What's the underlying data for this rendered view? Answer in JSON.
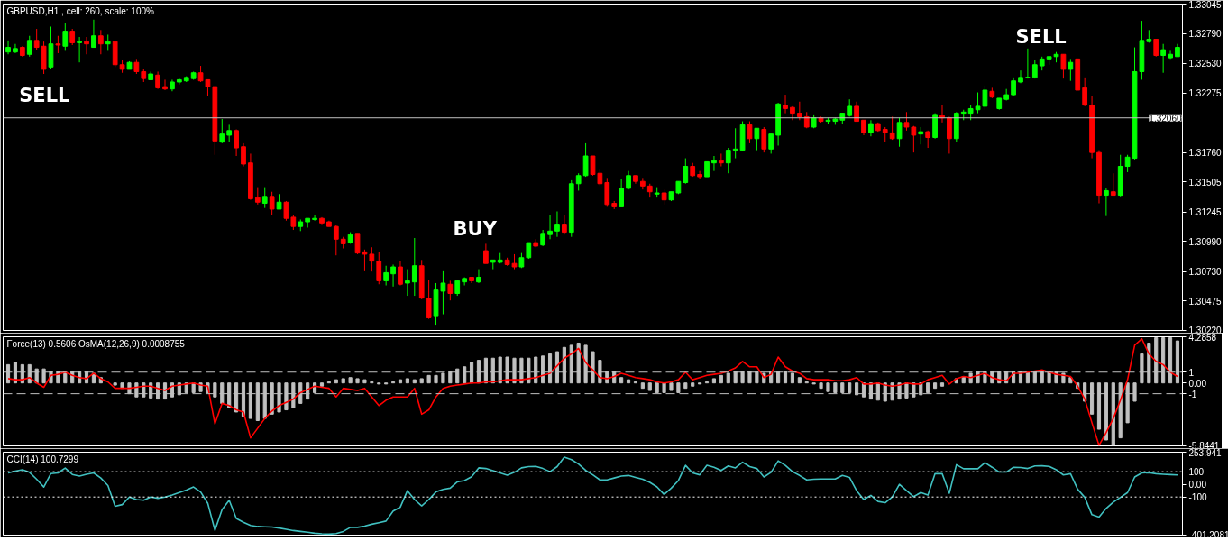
{
  "chart_data": [
    {
      "type": "candlestick",
      "title": "GBPUSD,H1 , cell: 260, scale: 100%",
      "categories": [
        null,
        null,
        null,
        null,
        null,
        null,
        null,
        null,
        null,
        null,
        null,
        null,
        null,
        null,
        null,
        null,
        null,
        null,
        null,
        null,
        null,
        null,
        null,
        null,
        null,
        null,
        null,
        null,
        null,
        null,
        null,
        null,
        null,
        null,
        null,
        null,
        null,
        null,
        null,
        null,
        null,
        null,
        null,
        null,
        null,
        null,
        null,
        null,
        null,
        null,
        null,
        null,
        null,
        null,
        null,
        null,
        null,
        null,
        null,
        null,
        null,
        null,
        null,
        null,
        null,
        null,
        null,
        null,
        null,
        null,
        null,
        null,
        null,
        null,
        null,
        null,
        null,
        null,
        null,
        null,
        null,
        null,
        null,
        null,
        null,
        null,
        null,
        null,
        null,
        null,
        null,
        null,
        null,
        null,
        null,
        null,
        null,
        null,
        null,
        null,
        null,
        null,
        null,
        null,
        null,
        null,
        null,
        null,
        null,
        null,
        null,
        null,
        null,
        null,
        null,
        null,
        null,
        null,
        null,
        null,
        null,
        null,
        null,
        null,
        null,
        null,
        null,
        null,
        null,
        null,
        null,
        null,
        null,
        null,
        null,
        null,
        null,
        null,
        null,
        null,
        null,
        null,
        null,
        null,
        null,
        null,
        null,
        null,
        null,
        null,
        null,
        null,
        null,
        null,
        null,
        null,
        null,
        null,
        null,
        null,
        null,
        null,
        null,
        null,
        null
      ],
      "ohlc": [
        [
          1.3263,
          1.3273,
          1.3261,
          1.3267
        ],
        [
          1.3263,
          1.327,
          1.3262,
          1.3266
        ],
        [
          1.3267,
          1.3268,
          1.3259,
          1.326
        ],
        [
          1.3261,
          1.3277,
          1.3259,
          1.3273
        ],
        [
          1.3273,
          1.3283,
          1.3265,
          1.3267
        ],
        [
          1.3268,
          1.3272,
          1.3244,
          1.3248
        ],
        [
          1.325,
          1.3285,
          1.3248,
          1.327
        ],
        [
          1.327,
          1.3277,
          1.3262,
          1.3269
        ],
        [
          1.3268,
          1.3288,
          1.3264,
          1.3281
        ],
        [
          1.3281,
          1.3283,
          1.3269,
          1.3271
        ],
        [
          1.3271,
          1.3276,
          1.3254,
          1.3272
        ],
        [
          1.3272,
          1.3276,
          1.3261,
          1.327
        ],
        [
          1.3267,
          1.3291,
          1.3267,
          1.3277
        ],
        [
          1.3277,
          1.3282,
          1.3261,
          1.327
        ],
        [
          1.327,
          1.3278,
          1.3264,
          1.3272
        ],
        [
          1.3272,
          1.3272,
          1.325,
          1.3252
        ],
        [
          1.3252,
          1.3256,
          1.3245,
          1.3248
        ],
        [
          1.3248,
          1.3255,
          1.3248,
          1.3254
        ],
        [
          1.3254,
          1.3257,
          1.3244,
          1.3246
        ],
        [
          1.3246,
          1.3248,
          1.3237,
          1.324
        ],
        [
          1.3239,
          1.3246,
          1.3239,
          1.3244
        ],
        [
          1.3243,
          1.3246,
          1.3231,
          1.3232
        ],
        [
          1.3233,
          1.3239,
          1.323,
          1.3231
        ],
        [
          1.3231,
          1.3239,
          1.3229,
          1.3237
        ],
        [
          1.3237,
          1.324,
          1.3235,
          1.3239
        ],
        [
          1.3238,
          1.3242,
          1.3237,
          1.3241
        ],
        [
          1.324,
          1.3246,
          1.3239,
          1.3245
        ],
        [
          1.3245,
          1.3251,
          1.3237,
          1.3238
        ],
        [
          1.3239,
          1.3239,
          1.3225,
          1.3233
        ],
        [
          1.3233,
          1.3233,
          1.3174,
          1.3186
        ],
        [
          1.3185,
          1.3205,
          1.3184,
          1.3192
        ],
        [
          1.3191,
          1.32,
          1.3185,
          1.3195
        ],
        [
          1.3195,
          1.3196,
          1.3173,
          1.318
        ],
        [
          1.3181,
          1.3184,
          1.3164,
          1.3166
        ],
        [
          1.3167,
          1.3175,
          1.3135,
          1.3136
        ],
        [
          1.3137,
          1.3146,
          1.3131,
          1.3133
        ],
        [
          1.3132,
          1.3146,
          1.3128,
          1.3138
        ],
        [
          1.3138,
          1.3142,
          1.3122,
          1.3127
        ],
        [
          1.3127,
          1.314,
          1.3127,
          1.3133
        ],
        [
          1.3133,
          1.3134,
          1.3117,
          1.3119
        ],
        [
          1.312,
          1.3122,
          1.3109,
          1.3112
        ],
        [
          1.3112,
          1.3118,
          1.3108,
          1.3116
        ],
        [
          1.3116,
          1.3119,
          1.3111,
          1.3119
        ],
        [
          1.3118,
          1.3122,
          1.3117,
          1.3119
        ],
        [
          1.3119,
          1.312,
          1.3114,
          1.3115
        ],
        [
          1.3116,
          1.3117,
          1.3112,
          1.3112
        ],
        [
          1.3112,
          1.3113,
          1.3087,
          1.3101
        ],
        [
          1.3101,
          1.3103,
          1.3093,
          1.3097
        ],
        [
          1.3098,
          1.3107,
          1.3097,
          1.3105
        ],
        [
          1.3106,
          1.3106,
          1.3088,
          1.3089
        ],
        [
          1.309,
          1.3092,
          1.3074,
          1.3088
        ],
        [
          1.3088,
          1.3094,
          1.3073,
          1.3082
        ],
        [
          1.3082,
          1.309,
          1.3062,
          1.3065
        ],
        [
          1.3065,
          1.3078,
          1.3061,
          1.3072
        ],
        [
          1.3071,
          1.3079,
          1.306,
          1.3077
        ],
        [
          1.3077,
          1.3082,
          1.3061,
          1.3062
        ],
        [
          1.3063,
          1.3075,
          1.3052,
          1.3065
        ],
        [
          1.3064,
          1.3102,
          1.3052,
          1.3078
        ],
        [
          1.3078,
          1.3083,
          1.3049,
          1.305
        ],
        [
          1.305,
          1.3066,
          1.3032,
          1.3033
        ],
        [
          1.3034,
          1.3063,
          1.3027,
          1.3057
        ],
        [
          1.3056,
          1.3074,
          1.3036,
          1.3063
        ],
        [
          1.3062,
          1.3065,
          1.3048,
          1.3054
        ],
        [
          1.3054,
          1.3065,
          1.3052,
          1.3065
        ],
        [
          1.3064,
          1.3068,
          1.3061,
          1.3067
        ],
        [
          1.3068,
          1.3068,
          1.3063,
          1.3065
        ],
        [
          1.3064,
          1.3075,
          1.3063,
          1.3068
        ],
        [
          1.3091,
          1.3097,
          1.308,
          1.308
        ],
        [
          1.3081,
          1.3083,
          1.3075,
          1.3083
        ],
        [
          1.3081,
          1.3089,
          1.308,
          1.3083
        ],
        [
          1.3083,
          1.3085,
          1.3078,
          1.3079
        ],
        [
          1.308,
          1.3088,
          1.3075,
          1.3077
        ],
        [
          1.3077,
          1.3089,
          1.3076,
          1.3085
        ],
        [
          1.3085,
          1.3098,
          1.3084,
          1.3098
        ],
        [
          1.3098,
          1.3101,
          1.3094,
          1.3095
        ],
        [
          1.3096,
          1.3109,
          1.3095,
          1.3106
        ],
        [
          1.3105,
          1.3122,
          1.3101,
          1.3108
        ],
        [
          1.3108,
          1.3125,
          1.3103,
          1.3114
        ],
        [
          1.3114,
          1.3122,
          1.3105,
          1.3107
        ],
        [
          1.3107,
          1.3152,
          1.3103,
          1.3149
        ],
        [
          1.3149,
          1.3158,
          1.3143,
          1.3156
        ],
        [
          1.3156,
          1.3184,
          1.3155,
          1.3173
        ],
        [
          1.3173,
          1.3173,
          1.3156,
          1.3157
        ],
        [
          1.3158,
          1.3162,
          1.3147,
          1.3149
        ],
        [
          1.315,
          1.3154,
          1.3129,
          1.3131
        ],
        [
          1.3132,
          1.3134,
          1.3127,
          1.3129
        ],
        [
          1.3129,
          1.3153,
          1.3129,
          1.3145
        ],
        [
          1.3145,
          1.316,
          1.3144,
          1.3156
        ],
        [
          1.3156,
          1.3156,
          1.3149,
          1.3151
        ],
        [
          1.3151,
          1.3154,
          1.3144,
          1.3147
        ],
        [
          1.3147,
          1.3149,
          1.3137,
          1.3142
        ],
        [
          1.314,
          1.3146,
          1.3137,
          1.3141
        ],
        [
          1.3141,
          1.3144,
          1.3131,
          1.3135
        ],
        [
          1.3135,
          1.3142,
          1.3134,
          1.3142
        ],
        [
          1.3141,
          1.3151,
          1.314,
          1.3151
        ],
        [
          1.315,
          1.3171,
          1.3149,
          1.3164
        ],
        [
          1.3164,
          1.3167,
          1.3155,
          1.3156
        ],
        [
          1.3157,
          1.316,
          1.3153,
          1.3155
        ],
        [
          1.3155,
          1.3168,
          1.3155,
          1.3168
        ],
        [
          1.3167,
          1.3173,
          1.316,
          1.3169
        ],
        [
          1.3169,
          1.3175,
          1.3164,
          1.3167
        ],
        [
          1.3167,
          1.318,
          1.3158,
          1.3178
        ],
        [
          1.3178,
          1.3197,
          1.3171,
          1.3179
        ],
        [
          1.3178,
          1.3203,
          1.3177,
          1.32
        ],
        [
          1.32,
          1.3203,
          1.3184,
          1.3188
        ],
        [
          1.3188,
          1.3197,
          1.3178,
          1.3197
        ],
        [
          1.3196,
          1.3198,
          1.3176,
          1.3179
        ],
        [
          1.3179,
          1.3192,
          1.3175,
          1.3192
        ],
        [
          1.3191,
          1.3219,
          1.3182,
          1.3218
        ],
        [
          1.3217,
          1.3226,
          1.321,
          1.3214
        ],
        [
          1.3215,
          1.3216,
          1.3204,
          1.321
        ],
        [
          1.321,
          1.322,
          1.3204,
          1.3207
        ],
        [
          1.3207,
          1.3211,
          1.3197,
          1.3198
        ],
        [
          1.3198,
          1.3209,
          1.3197,
          1.3206
        ],
        [
          1.3206,
          1.3207,
          1.3202,
          1.3203
        ],
        [
          1.3203,
          1.3206,
          1.3201,
          1.3204
        ],
        [
          1.3203,
          1.3206,
          1.32,
          1.3205
        ],
        [
          1.3204,
          1.321,
          1.3201,
          1.321
        ],
        [
          1.3208,
          1.3222,
          1.3207,
          1.3216
        ],
        [
          1.3216,
          1.322,
          1.3203,
          1.3203
        ],
        [
          1.3204,
          1.3204,
          1.3191,
          1.3193
        ],
        [
          1.3193,
          1.3204,
          1.319,
          1.3201
        ],
        [
          1.3201,
          1.3202,
          1.3194,
          1.3195
        ],
        [
          1.3196,
          1.3198,
          1.3185,
          1.3193
        ],
        [
          1.3193,
          1.3207,
          1.3187,
          1.3188
        ],
        [
          1.3188,
          1.3206,
          1.3181,
          1.3202
        ],
        [
          1.3202,
          1.3211,
          1.3195,
          1.3198
        ],
        [
          1.3198,
          1.3199,
          1.3176,
          1.3191
        ],
        [
          1.3192,
          1.3198,
          1.3183,
          1.3194
        ],
        [
          1.3194,
          1.3195,
          1.318,
          1.3189
        ],
        [
          1.3189,
          1.321,
          1.3188,
          1.3209
        ],
        [
          1.3208,
          1.3217,
          1.3202,
          1.3206
        ],
        [
          1.3206,
          1.3207,
          1.3175,
          1.3188
        ],
        [
          1.3188,
          1.3211,
          1.3185,
          1.321
        ],
        [
          1.321,
          1.3213,
          1.3204,
          1.3211
        ],
        [
          1.321,
          1.3217,
          1.3204,
          1.3214
        ],
        [
          1.3213,
          1.3228,
          1.321,
          1.3216
        ],
        [
          1.3216,
          1.3234,
          1.3213,
          1.323
        ],
        [
          1.3229,
          1.3232,
          1.3223,
          1.3224
        ],
        [
          1.3214,
          1.3223,
          1.3213,
          1.3223
        ],
        [
          1.3222,
          1.3231,
          1.3221,
          1.3226
        ],
        [
          1.3226,
          1.3241,
          1.3225,
          1.3238
        ],
        [
          1.3237,
          1.3247,
          1.3236,
          1.3241
        ],
        [
          1.3241,
          1.3266,
          1.324,
          1.3241
        ],
        [
          1.3241,
          1.3256,
          1.324,
          1.3252
        ],
        [
          1.3251,
          1.3259,
          1.3247,
          1.3257
        ],
        [
          1.3257,
          1.3259,
          1.3252,
          1.3259
        ],
        [
          1.3259,
          1.3263,
          1.3254,
          1.3261
        ],
        [
          1.3261,
          1.3261,
          1.324,
          1.3248
        ],
        [
          1.3248,
          1.3257,
          1.3238,
          1.3254
        ],
        [
          1.3257,
          1.3257,
          1.323,
          1.323
        ],
        [
          1.3232,
          1.3241,
          1.3216,
          1.3217
        ],
        [
          1.3217,
          1.3225,
          1.3171,
          1.3176
        ],
        [
          1.3176,
          1.3178,
          1.3132,
          1.3139
        ],
        [
          1.3139,
          1.3145,
          1.3121,
          1.3143
        ],
        [
          1.3142,
          1.3158,
          1.3139,
          1.3139
        ],
        [
          1.3139,
          1.3174,
          1.3138,
          1.3164
        ],
        [
          1.3164,
          1.3174,
          1.3159,
          1.3172
        ],
        [
          1.3171,
          1.3267,
          1.317,
          1.3246
        ],
        [
          1.3246,
          1.329,
          1.3239,
          1.3273
        ],
        [
          1.3272,
          1.3282,
          1.3271,
          1.3274
        ],
        [
          1.3274,
          1.3274,
          1.3259,
          1.326
        ],
        [
          1.326,
          1.327,
          1.3245,
          1.3265
        ],
        [
          1.3258,
          1.3264,
          1.3257,
          1.3261
        ],
        [
          1.3259,
          1.327,
          1.3259,
          1.3267
        ]
      ],
      "colors": [
        "#00ff00",
        "#00ff00",
        "#ff0000",
        "#00ff00",
        "#ff0000",
        "#ff0000",
        "#00ff00",
        "#ff0000",
        "#00ff00",
        "#ff0000",
        "#00ff00",
        "#ff0000",
        "#00ff00",
        "#ff0000",
        "#00ff00",
        "#ff0000",
        "#ff0000",
        "#00ff00",
        "#ff0000",
        "#ff0000",
        "#00ff00",
        "#ff0000",
        "#ff0000",
        "#00ff00",
        "#00ff00",
        "#00ff00",
        "#00ff00",
        "#ff0000",
        "#ff0000",
        "#ff0000",
        "#00ff00",
        "#00ff00",
        "#ff0000",
        "#ff0000",
        "#ff0000",
        "#ff0000",
        "#00ff00",
        "#ff0000",
        "#00ff00",
        "#ff0000",
        "#ff0000",
        "#00ff00",
        "#00ff00",
        "#00ff00",
        "#ff0000",
        "#ff0000",
        "#ff0000",
        "#ff0000",
        "#00ff00",
        "#ff0000",
        "#ff0000",
        "#ff0000",
        "#ff0000",
        "#00ff00",
        "#00ff00",
        "#ff0000",
        "#00ff00",
        "#00ff00",
        "#ff0000",
        "#ff0000",
        "#00ff00",
        "#00ff00",
        "#ff0000",
        "#00ff00",
        "#00ff00",
        "#ff0000",
        "#00ff00",
        "#ff0000",
        "#00ff00",
        "#00ff00",
        "#ff0000",
        "#ff0000",
        "#00ff00",
        "#00ff00",
        "#ff0000",
        "#00ff00",
        "#00ff00",
        "#00ff00",
        "#ff0000",
        "#00ff00",
        "#00ff00",
        "#00ff00",
        "#ff0000",
        "#ff0000",
        "#ff0000",
        "#ff0000",
        "#00ff00",
        "#00ff00",
        "#ff0000",
        "#ff0000",
        "#ff0000",
        "#00ff00",
        "#ff0000",
        "#00ff00",
        "#00ff00",
        "#00ff00",
        "#ff0000",
        "#ff0000",
        "#00ff00",
        "#00ff00",
        "#ff0000",
        "#00ff00",
        "#00ff00",
        "#00ff00",
        "#ff0000",
        "#00ff00",
        "#ff0000",
        "#00ff00",
        "#00ff00",
        "#ff0000",
        "#ff0000",
        "#ff0000",
        "#ff0000",
        "#00ff00",
        "#ff0000",
        "#00ff00",
        "#00ff00",
        "#00ff00",
        "#00ff00",
        "#ff0000",
        "#ff0000",
        "#00ff00",
        "#ff0000",
        "#ff0000",
        "#ff0000",
        "#00ff00",
        "#ff0000",
        "#ff0000",
        "#00ff00",
        "#ff0000",
        "#00ff00",
        "#ff0000",
        "#ff0000",
        "#00ff00",
        "#00ff00",
        "#00ff00",
        "#00ff00",
        "#00ff00",
        "#ff0000",
        "#00ff00",
        "#00ff00",
        "#00ff00",
        "#00ff00",
        "#00ff00",
        "#00ff00",
        "#00ff00",
        "#00ff00",
        "#00ff00",
        "#ff0000",
        "#00ff00",
        "#ff0000",
        "#ff0000",
        "#ff0000",
        "#ff0000",
        "#00ff00",
        "#ff0000",
        "#00ff00",
        "#00ff00",
        "#00ff00",
        "#00ff00",
        "#00ff00",
        "#ff0000",
        "#00ff00",
        "#00ff00",
        "#00ff00"
      ],
      "ylim": [
        1.3022,
        1.33045
      ],
      "yticks": [
        1.33045,
        {
          "value": 1.3279,
          "label": "1.32790"
        },
        {
          "value": 1.3253,
          "label": "1.32530"
        },
        1.32275,
        {
          "value": 1.3176,
          "label": "1.31760"
        },
        1.31505,
        1.31245,
        {
          "value": 1.3099,
          "label": "1.30990"
        },
        {
          "value": 1.3073,
          "label": "1.30730"
        },
        1.30475,
        {
          "value": 1.3022,
          "label": "1.30220"
        }
      ],
      "ref_lines": [
        {
          "axis": "y",
          "value": 1.3206,
          "label": "1.32060",
          "color": "#c0c0c0"
        }
      ],
      "annotations": [
        "SELL",
        "BUY",
        "SELL"
      ]
    },
    {
      "type": "bar",
      "title": "Force(13) 0.5606 OsMA(12,26,9) 0.0008755",
      "categories": [
        null,
        null,
        null,
        null,
        null,
        null,
        null,
        null,
        null,
        null,
        null,
        null,
        null,
        null,
        null,
        null,
        null,
        null,
        null,
        null,
        null,
        null,
        null,
        null,
        null,
        null,
        null,
        null,
        null,
        null,
        null,
        null,
        null,
        null,
        null,
        null,
        null,
        null,
        null,
        null,
        null,
        null,
        null,
        null,
        null,
        null,
        null,
        null,
        null,
        null,
        null,
        null,
        null,
        null,
        null,
        null,
        null,
        null,
        null,
        null,
        null,
        null,
        null,
        null,
        null,
        null,
        null,
        null,
        null,
        null,
        null,
        null,
        null,
        null,
        null,
        null,
        null,
        null,
        null,
        null,
        null,
        null,
        null,
        null,
        null,
        null,
        null,
        null,
        null,
        null,
        null,
        null,
        null,
        null,
        null,
        null,
        null,
        null,
        null,
        null,
        null,
        null,
        null,
        null,
        null,
        null,
        null,
        null,
        null,
        null,
        null,
        null,
        null,
        null,
        null,
        null,
        null,
        null,
        null,
        null,
        null,
        null,
        null,
        null,
        null,
        null,
        null,
        null,
        null,
        null,
        null,
        null,
        null,
        null,
        null,
        null,
        null,
        null,
        null,
        null,
        null,
        null,
        null,
        null,
        null,
        null,
        null,
        null,
        null,
        null,
        null,
        null,
        null,
        null,
        null,
        null,
        null,
        null,
        null,
        null,
        null,
        null,
        null,
        null,
        null
      ],
      "series": [
        {
          "type": "bar",
          "color": "#c0c0c0",
          "values": [
            1.7,
            1.9,
            1.7,
            1.7,
            1.3,
            1.3,
            1.1,
            1.1,
            1.1,
            1.1,
            1.1,
            1.1,
            0.9,
            0.5,
            null,
            -0.2,
            -0.5,
            -1.0,
            -1.3,
            -1.3,
            -1.4,
            -1.5,
            -1.5,
            -1.3,
            -1.1,
            -0.9,
            -0.9,
            -0.8,
            -0.9,
            -1.3,
            -1.9,
            -2.3,
            -2.7,
            -3.1,
            -3.3,
            -3.5,
            -3.3,
            -2.9,
            -2.7,
            -2.5,
            -2.3,
            -1.9,
            -1.5,
            -0.9,
            -0.3,
            0.1,
            0.3,
            0.4,
            0.5,
            0.4,
            0.3,
            0.1,
            -0.1,
            -0.1,
            0.1,
            0.3,
            0.4,
            0.3,
            0.4,
            0.7,
            0.7,
            0.9,
            1.1,
            1.3,
            1.5,
            1.9,
            2.1,
            2.3,
            2.3,
            2.4,
            2.4,
            2.3,
            2.3,
            2.3,
            2.4,
            2.5,
            2.7,
            2.9,
            3.3,
            3.5,
            3.7,
            3.5,
            2.9,
            2.1,
            1.1,
            1.1,
            0.5,
            0.3,
            0.1,
            -0.5,
            -0.7,
            -0.9,
            -0.9,
            -0.7,
            -0.9,
            -0.5,
            -0.3,
            -0.1,
            0.1,
            0.4,
            0.7,
            0.9,
            1.1,
            1.1,
            1.1,
            1.1,
            0.9,
            1.1,
            1.1,
            1.1,
            0.9,
            0.5,
            0.1,
            -0.1,
            -0.5,
            -0.8,
            -0.9,
            -0.9,
            -0.9,
            -1.1,
            -1.3,
            -1.5,
            -1.6,
            -1.7,
            -1.6,
            -1.5,
            -1.4,
            -1.3,
            -1.1,
            -0.9,
            -0.5,
            -0.3,
            null,
            0.4,
            0.6,
            0.9,
            1.1,
            1.1,
            1.1,
            1.1,
            1.1,
            1.1,
            1.1,
            1.1,
            1.1,
            1.1,
            1.1,
            1.1,
            0.9,
            0.5,
            -0.5,
            -1.7,
            -2.9,
            -4.3,
            -5.3,
            -5.8,
            -5.1,
            -3.7,
            -1.7,
            2.7,
            3.7,
            4.2,
            4.2,
            4.2,
            3.9
          ]
        },
        {
          "type": "line",
          "color": "#ff0000",
          "values": [
            0.4,
            0.3,
            0.3,
            0.5,
            0.0,
            -0.4,
            0.7,
            0.8,
            1.0,
            0.7,
            0.5,
            0.4,
            0.9,
            0.4,
            0.1,
            -0.5,
            -0.5,
            -0.5,
            -0.4,
            -0.3,
            -0.3,
            -0.5,
            -0.7,
            -0.3,
            -0.2,
            -0.1,
            0.0,
            -0.2,
            -0.3,
            -3.8,
            -1.9,
            -2.1,
            -2.5,
            -2.7,
            -5.1,
            -4.2,
            -3.3,
            -2.6,
            -2.1,
            -1.8,
            -1.5,
            -0.9,
            -0.6,
            -0.3,
            -0.4,
            -0.5,
            -1.3,
            -0.5,
            -0.6,
            -0.7,
            -0.5,
            -1.3,
            -2.1,
            -1.6,
            -1.3,
            -1.3,
            -1.3,
            -0.5,
            -2.9,
            -2.5,
            -1.3,
            -0.5,
            -0.3,
            -0.2,
            -0.1,
            0.0,
            0.0,
            0.1,
            0.1,
            0.2,
            0.3,
            0.3,
            0.3,
            0.4,
            0.5,
            0.7,
            0.9,
            1.6,
            2.3,
            2.7,
            3.2,
            1.9,
            1.2,
            0.5,
            0.4,
            0.6,
            0.9,
            0.7,
            0.5,
            0.4,
            0.3,
            0.1,
            0.0,
            0.1,
            0.3,
            1.0,
            0.3,
            0.5,
            0.7,
            0.8,
            0.9,
            1.1,
            1.4,
            2.0,
            1.5,
            1.5,
            0.5,
            0.8,
            2.4,
            1.5,
            1.1,
            0.9,
            0.4,
            0.3,
            0.3,
            0.3,
            0.2,
            0.2,
            0.3,
            0.5,
            -0.1,
            -0.1,
            0.0,
            -0.2,
            -0.3,
            -0.2,
            0.0,
            -0.1,
            -0.1,
            0.3,
            0.5,
            0.7,
            -0.1,
            0.4,
            0.6,
            0.5,
            0.7,
            0.9,
            0.5,
            0.3,
            0.2,
            0.9,
            0.9,
            1.0,
            1.1,
            1.2,
            1.0,
            0.8,
            0.7,
            0.6,
            -0.3,
            -1.5,
            -3.7,
            -5.8,
            -4.6,
            -3.3,
            -1.6,
            0.3,
            3.5,
            4.1,
            2.7,
            2.0,
            1.7,
            1.0,
            0.6
          ]
        }
      ],
      "ylim": [
        -5.8441,
        4.2858
      ],
      "yticks": [
        4.2858,
        1,
        {
          "value": 0,
          "label": "0.00"
        },
        -1,
        -5.8441
      ],
      "ref_lines": [
        {
          "axis": "y",
          "value": 1,
          "color": "#c0c0c0",
          "line_style": "dashed"
        },
        {
          "axis": "y",
          "value": -1,
          "color": "#c0c0c0",
          "line_style": "dashed"
        }
      ]
    },
    {
      "type": "line",
      "title": "CCI(14) 100.7299",
      "categories": [
        null,
        null,
        null,
        null,
        null,
        null,
        null,
        null,
        null,
        null,
        null,
        null,
        null,
        null,
        null,
        null,
        null,
        null,
        null,
        null,
        null,
        null,
        null,
        null,
        null,
        null,
        null,
        null,
        null,
        null,
        null,
        null,
        null,
        null,
        null,
        null,
        null,
        null,
        null,
        null,
        null,
        null,
        null,
        null,
        null,
        null,
        null,
        null,
        null,
        null,
        null,
        null,
        null,
        null,
        null,
        null,
        null,
        null,
        null,
        null,
        null,
        null,
        null,
        null,
        null,
        null,
        null,
        null,
        null,
        null,
        null,
        null,
        null,
        null,
        null,
        null,
        null,
        null,
        null,
        null,
        null,
        null,
        null,
        null,
        null,
        null,
        null,
        null,
        null,
        null,
        null,
        null,
        null,
        null,
        null,
        null,
        null,
        null,
        null,
        null,
        null,
        null,
        null,
        null,
        null,
        null,
        null,
        null,
        null,
        null,
        null,
        null,
        null,
        null,
        null,
        null,
        null,
        null,
        null,
        null,
        null,
        null,
        null,
        null,
        null,
        null,
        null,
        null,
        null,
        null,
        null,
        null,
        null,
        null,
        null,
        null,
        null,
        null,
        null,
        null,
        null,
        null,
        null,
        null,
        null,
        null,
        null,
        null,
        null,
        null,
        null,
        null,
        null,
        null,
        null,
        null,
        null,
        null,
        null,
        null,
        null,
        null,
        null,
        null,
        null
      ],
      "series": [
        {
          "color": "#40c0c0",
          "values": [
            90,
            105,
            115,
            95,
            40,
            -21,
            85,
            90,
            129,
            78,
            65,
            80,
            90,
            50,
            -10,
            -173,
            -160,
            -100,
            -120,
            -125,
            -100,
            -110,
            -100,
            -84,
            -65,
            -45,
            -21,
            -60,
            -150,
            -363,
            -200,
            -125,
            -270,
            -300,
            -325,
            -333,
            -335,
            -337,
            -345,
            -355,
            -365,
            -372,
            -378,
            -386,
            -391,
            -393,
            -389,
            -372,
            -340,
            -340,
            -330,
            -315,
            -303,
            -290,
            -211,
            -180,
            -50,
            -120,
            -170,
            -120,
            -60,
            -40,
            -30,
            20,
            30,
            60,
            130,
            125,
            108,
            90,
            72,
            95,
            130,
            140,
            142,
            125,
            100,
            140,
            215,
            195,
            160,
            110,
            75,
            35,
            35,
            50,
            65,
            70,
            55,
            40,
            15,
            -20,
            -80,
            -30,
            30,
            150,
            90,
            75,
            150,
            135,
            110,
            145,
            130,
            175,
            140,
            125,
            58,
            95,
            185,
            150,
            100,
            70,
            35,
            40,
            42,
            42,
            42,
            70,
            55,
            -50,
            -120,
            -87,
            -135,
            -145,
            -100,
            0,
            -50,
            -97,
            -65,
            -85,
            85,
            84,
            -70,
            155,
            123,
            123,
            123,
            171,
            135,
            97,
            97,
            135,
            133,
            125,
            145,
            146,
            142,
            115,
            74,
            84,
            -39,
            -103,
            -240,
            -258,
            -190,
            -140,
            -103,
            -65,
            58,
            90,
            92,
            84,
            80,
            77,
            74
          ]
        }
      ],
      "ylim": [
        -401.2081,
        253.941
      ],
      "yticks": [
        253.941,
        100,
        {
          "value": 0,
          "label": "0.00"
        },
        -100,
        -401.2081
      ],
      "ref_lines": [
        {
          "axis": "y",
          "value": 100,
          "color": "#ffffff",
          "line_style": "dotted"
        },
        {
          "axis": "y",
          "value": -100,
          "color": "#ffffff",
          "line_style": "dotted"
        }
      ]
    }
  ]
}
